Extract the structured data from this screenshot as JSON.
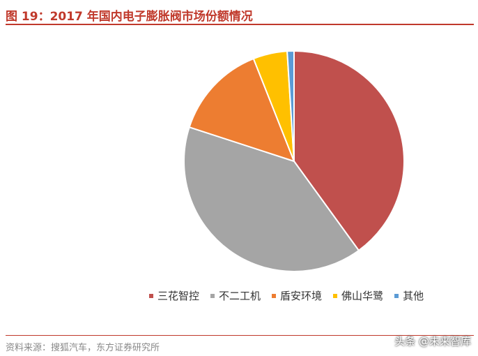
{
  "title": "图 19：2017 年国内电子膨胀阀市场份额情况",
  "source": "资料来源：搜狐汽车，东方证券研究所",
  "watermark": "头条 @未来智库",
  "chart_data": {
    "type": "pie",
    "title": "",
    "categories": [
      "三花智控",
      "不二工机",
      "盾安环境",
      "佛山华鹭",
      "其他"
    ],
    "values": [
      40,
      40,
      14,
      5,
      1
    ],
    "unit": "%",
    "colors": [
      "#c0504d",
      "#a5a5a5",
      "#ed7d31",
      "#ffc000",
      "#5b9bd5"
    ],
    "legend_position": "bottom",
    "start_angle_deg": 0,
    "direction": "clockwise"
  }
}
